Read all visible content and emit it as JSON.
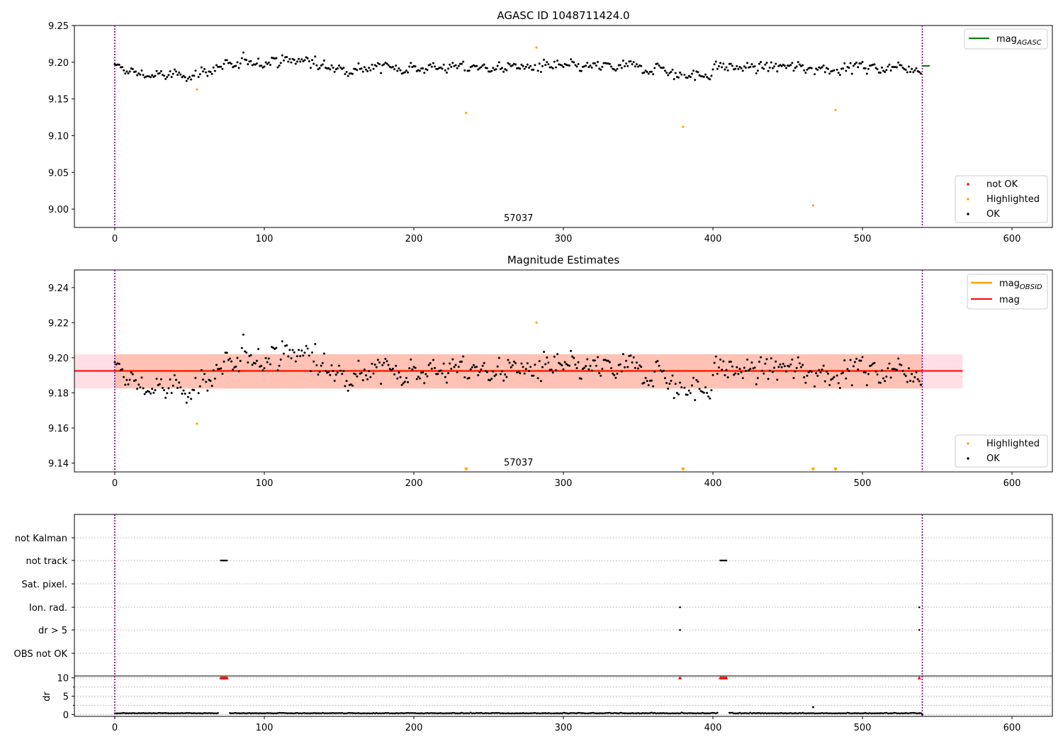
{
  "colors": {
    "ok": "#000000",
    "highlighted": "#ffa500",
    "not_ok": "#ff0000",
    "agasc_line": "#008000",
    "mag_line": "#ff0000",
    "obsid_line": "#ffa500",
    "band_fill": "#ffc0cb",
    "band_fill_obsid": "#ffa07a",
    "boundary": "#800080",
    "grid": "#b0b0b0"
  },
  "chart_data": [
    {
      "type": "scatter",
      "title": "AGASC ID 1048711424.0",
      "xlim": [
        -27,
        627
      ],
      "ylim": [
        8.975,
        9.25
      ],
      "xticks": [
        0,
        100,
        200,
        300,
        400,
        500,
        600
      ],
      "yticks": [
        9.0,
        9.05,
        9.1,
        9.15,
        9.2,
        9.25
      ],
      "ytick_labels": [
        "9.00",
        "9.05",
        "9.10",
        "9.15",
        "9.20",
        "9.25"
      ],
      "annotation": {
        "text": "57037",
        "x": 270
      },
      "obsid_boundaries": [
        0,
        540
      ],
      "reference_line": {
        "name": "mag_AGASC",
        "label_main": "mag",
        "label_sub": "AGASC",
        "y": 9.195,
        "x_range": [
          540,
          545
        ]
      },
      "ok_series": {
        "name": "OK",
        "count": 540,
        "mean": 9.193,
        "noise": 0.009
      },
      "highlighted_points": [
        [
          55,
          9.163
        ],
        [
          235,
          9.131
        ],
        [
          282,
          9.22
        ],
        [
          380,
          9.112
        ],
        [
          467,
          9.005
        ],
        [
          482,
          9.135
        ]
      ],
      "legend_upper": {
        "position": "upper right",
        "entries": [
          "mag_AGASC"
        ]
      },
      "legend_lower": {
        "position": "lower right",
        "entries": [
          "not OK",
          "Highlighted",
          "OK"
        ]
      }
    },
    {
      "type": "scatter",
      "title": "Magnitude Estimates",
      "xlim": [
        -27,
        627
      ],
      "ylim": [
        9.135,
        9.25
      ],
      "xticks": [
        0,
        100,
        200,
        300,
        400,
        500,
        600
      ],
      "yticks": [
        9.14,
        9.16,
        9.18,
        9.2,
        9.22,
        9.24
      ],
      "ytick_labels": [
        "9.14",
        "9.16",
        "9.18",
        "9.20",
        "9.22",
        "9.24"
      ],
      "annotation": {
        "text": "57037",
        "x": 270
      },
      "obsid_boundaries": [
        0,
        540
      ],
      "mag_line": {
        "name": "mag",
        "y": 9.1925,
        "x_range": [
          -27,
          567
        ]
      },
      "mag_band": {
        "y_range": [
          9.1825,
          9.202
        ],
        "x_range": [
          -27,
          567
        ]
      },
      "obsid_line": {
        "name": "mag_OBSID",
        "label_main": "mag",
        "label_sub": "OBSID",
        "y": 9.1925,
        "x_range": [
          0,
          540
        ]
      },
      "obsid_band": {
        "y_range": [
          9.1825,
          9.202
        ],
        "x_range": [
          0,
          540
        ]
      },
      "highlighted_points": [
        [
          55,
          9.1625
        ],
        [
          282,
          9.22
        ]
      ],
      "below_range_markers": [
        235,
        380,
        467,
        482
      ],
      "legend_upper": {
        "position": "upper right",
        "entries": [
          "mag_OBSID",
          "mag"
        ]
      },
      "legend_lower": {
        "position": "lower right",
        "entries": [
          "Highlighted",
          "OK"
        ]
      }
    },
    {
      "type": "scatter",
      "title": "",
      "xlim": [
        -27,
        627
      ],
      "xticks": [
        0,
        100,
        200,
        300,
        400,
        500,
        600
      ],
      "flag_rows": [
        "not Kalman",
        "not track",
        "Sat. pixel.",
        "Ion. rad.",
        "dr > 5",
        "OBS not OK"
      ],
      "flag_points": {
        "not Kalman": [],
        "not track": [
          71,
          72,
          73,
          74,
          75,
          405,
          406,
          407,
          408,
          409
        ],
        "Sat. pixel.": [],
        "Ion. rad.": [
          378,
          538
        ],
        "dr > 5": [
          378,
          538
        ],
        "OBS not OK": []
      },
      "dr_panel": {
        "ylabel": "dr",
        "ylim": [
          -0.5,
          10.5
        ],
        "yticks": [
          0,
          5,
          10
        ],
        "clipped_markers": [
          71,
          72,
          73,
          74,
          75,
          378,
          405,
          406,
          407,
          408,
          409,
          538
        ],
        "ok_series": {
          "count": 540,
          "baseline": 0.3,
          "noise": 0.2
        },
        "outliers": [
          [
            467,
            2.0
          ],
          [
            540,
            0.0
          ]
        ]
      },
      "obsid_boundaries": [
        0,
        540
      ]
    }
  ]
}
